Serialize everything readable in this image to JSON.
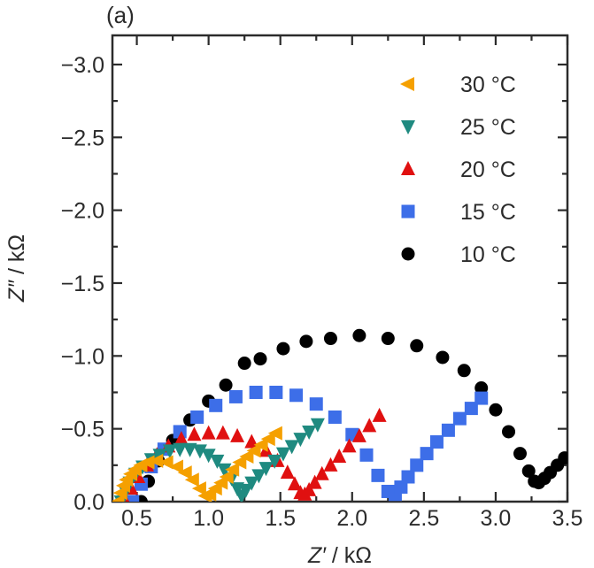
{
  "panel_label": "(a)",
  "chart_data": {
    "type": "scatter",
    "xlabel_var": "Z′",
    "xlabel_unit": " / kΩ",
    "ylabel_var": "Z″",
    "ylabel_unit": " / kΩ",
    "xlim": [
      0.33,
      3.5
    ],
    "ylim": [
      0.0,
      -3.2
    ],
    "x_ticks": [
      0.5,
      1.0,
      1.5,
      2.0,
      2.5,
      3.0,
      3.5
    ],
    "x_tick_labels": [
      "0.5",
      "1.0",
      "1.5",
      "2.0",
      "2.5",
      "3.0",
      "3.5"
    ],
    "y_ticks": [
      0.0,
      -0.5,
      -1.0,
      -1.5,
      -2.0,
      -2.5,
      -3.0
    ],
    "y_tick_labels": [
      "0.0",
      "−0.5",
      "−1.0",
      "−1.5",
      "−2.0",
      "−2.5",
      "−3.0"
    ],
    "grid": false,
    "legend_position": "top-right",
    "series": [
      {
        "name": "30 °C",
        "marker": "triangle-left",
        "color": "#f5a000",
        "x": [
          0.37,
          0.39,
          0.41,
          0.43,
          0.46,
          0.49,
          0.53,
          0.58,
          0.64,
          0.71,
          0.78,
          0.84,
          0.89,
          0.94,
          0.98,
          1.01,
          1.05,
          1.09,
          1.13,
          1.17,
          1.22,
          1.27,
          1.32,
          1.37,
          1.42,
          1.47
        ],
        "y": [
          0.0,
          -0.06,
          -0.11,
          -0.15,
          -0.19,
          -0.22,
          -0.25,
          -0.27,
          -0.28,
          -0.27,
          -0.24,
          -0.2,
          -0.15,
          -0.09,
          -0.04,
          -0.05,
          -0.09,
          -0.13,
          -0.17,
          -0.22,
          -0.27,
          -0.31,
          -0.35,
          -0.39,
          -0.43,
          -0.47
        ]
      },
      {
        "name": "25 °C",
        "marker": "triangle-down",
        "color": "#1f8a80",
        "x": [
          0.39,
          0.42,
          0.45,
          0.49,
          0.54,
          0.6,
          0.66,
          0.73,
          0.8,
          0.87,
          0.94,
          1.0,
          1.06,
          1.11,
          1.16,
          1.2,
          1.23,
          1.26,
          1.3,
          1.35,
          1.4,
          1.46,
          1.52,
          1.58,
          1.64,
          1.7,
          1.76
        ],
        "y": [
          0.0,
          -0.07,
          -0.13,
          -0.19,
          -0.24,
          -0.29,
          -0.32,
          -0.35,
          -0.36,
          -0.36,
          -0.35,
          -0.32,
          -0.28,
          -0.22,
          -0.16,
          -0.09,
          -0.04,
          -0.08,
          -0.13,
          -0.18,
          -0.23,
          -0.28,
          -0.33,
          -0.38,
          -0.43,
          -0.48,
          -0.53
        ]
      },
      {
        "name": "20 °C",
        "marker": "triangle-up",
        "color": "#e01010",
        "x": [
          0.42,
          0.46,
          0.51,
          0.57,
          0.64,
          0.72,
          0.81,
          0.9,
          1.0,
          1.1,
          1.2,
          1.3,
          1.4,
          1.48,
          1.55,
          1.6,
          1.64,
          1.67,
          1.7,
          1.74,
          1.79,
          1.85,
          1.91,
          1.98,
          2.05,
          2.12,
          2.19
        ],
        "y": [
          0.0,
          -0.09,
          -0.17,
          -0.25,
          -0.32,
          -0.38,
          -0.43,
          -0.46,
          -0.47,
          -0.47,
          -0.45,
          -0.41,
          -0.35,
          -0.28,
          -0.2,
          -0.12,
          -0.06,
          -0.05,
          -0.08,
          -0.13,
          -0.19,
          -0.25,
          -0.31,
          -0.38,
          -0.45,
          -0.52,
          -0.59
        ]
      },
      {
        "name": "15 °C",
        "marker": "square",
        "color": "#3d6ee8",
        "x": [
          0.47,
          0.53,
          0.6,
          0.69,
          0.8,
          0.92,
          1.05,
          1.19,
          1.33,
          1.47,
          1.61,
          1.75,
          1.88,
          2.0,
          2.1,
          2.18,
          2.25,
          2.3,
          2.34,
          2.39,
          2.45,
          2.52,
          2.59,
          2.67,
          2.75,
          2.83,
          2.9
        ],
        "y": [
          0.0,
          -0.12,
          -0.24,
          -0.36,
          -0.48,
          -0.58,
          -0.66,
          -0.72,
          -0.75,
          -0.75,
          -0.73,
          -0.67,
          -0.58,
          -0.46,
          -0.32,
          -0.18,
          -0.07,
          -0.05,
          -0.1,
          -0.17,
          -0.25,
          -0.33,
          -0.41,
          -0.49,
          -0.57,
          -0.64,
          -0.71
        ]
      },
      {
        "name": "10 °C",
        "marker": "circle",
        "color": "#000000",
        "x": [
          0.53,
          0.58,
          0.65,
          0.75,
          0.87,
          1.0,
          1.12,
          1.25,
          1.36,
          1.52,
          1.68,
          1.85,
          2.05,
          2.25,
          2.45,
          2.63,
          2.78,
          2.9,
          3.0,
          3.09,
          3.17,
          3.23,
          3.27,
          3.3,
          3.34,
          3.38,
          3.43,
          3.48
        ],
        "y": [
          0.0,
          -0.14,
          -0.28,
          -0.42,
          -0.56,
          -0.69,
          -0.8,
          -0.95,
          -0.98,
          -1.05,
          -1.1,
          -1.12,
          -1.14,
          -1.12,
          -1.07,
          -0.99,
          -0.9,
          -0.78,
          -0.63,
          -0.48,
          -0.33,
          -0.21,
          -0.14,
          -0.13,
          -0.16,
          -0.2,
          -0.25,
          -0.3
        ]
      }
    ]
  }
}
